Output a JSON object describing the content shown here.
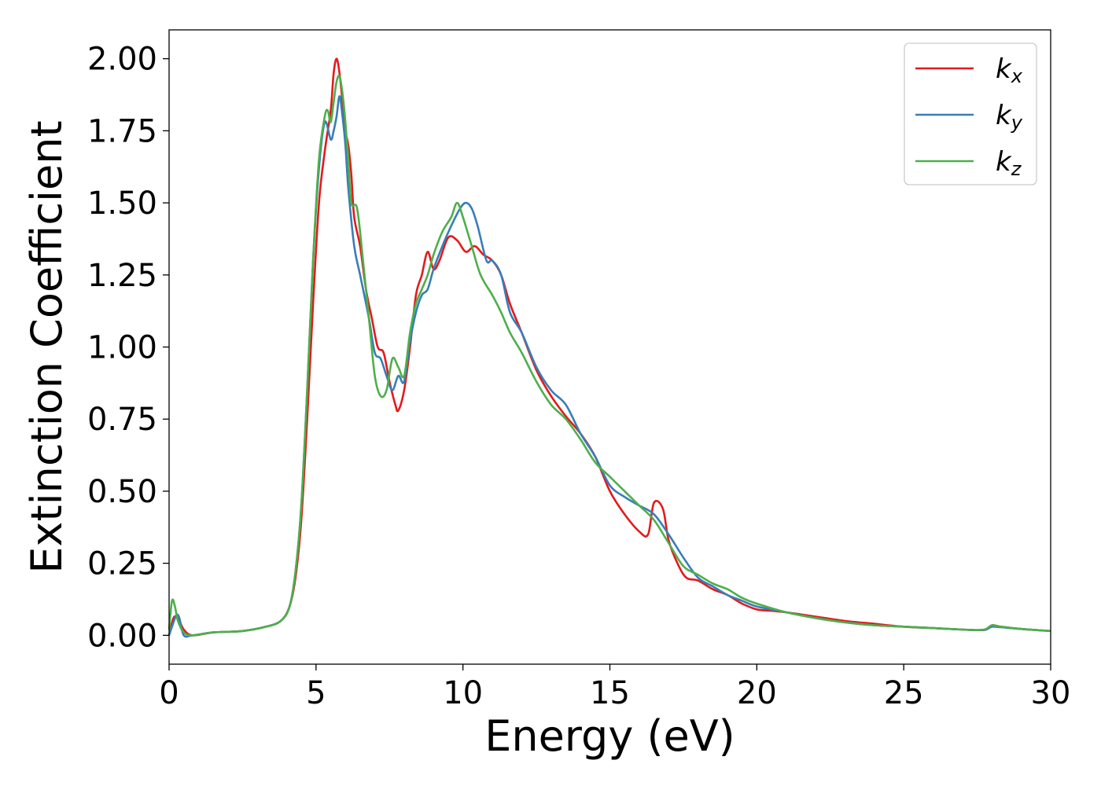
{
  "chart_data": {
    "type": "line",
    "xlabel": "Energy (eV)",
    "ylabel": "Extinction Coefficient",
    "xlim": [
      0,
      30
    ],
    "ylim": [
      -0.1,
      2.1
    ],
    "xticks": [
      "0",
      "5",
      "10",
      "15",
      "20",
      "25",
      "30"
    ],
    "yticks": [
      "0.00",
      "0.25",
      "0.50",
      "0.75",
      "1.00",
      "1.25",
      "1.50",
      "1.75",
      "2.00"
    ],
    "grid": false,
    "legend_position": "top-right",
    "series": [
      {
        "name": "k",
        "subscript": "x",
        "color": "#e41a1c",
        "x": [
          0,
          0.15,
          0.3,
          0.5,
          0.8,
          1.5,
          2.5,
          3.3,
          3.8,
          4.1,
          4.3,
          4.5,
          4.7,
          4.9,
          5.1,
          5.3,
          5.5,
          5.6,
          5.7,
          5.8,
          5.9,
          6.0,
          6.1,
          6.2,
          6.3,
          6.5,
          6.7,
          6.9,
          7.1,
          7.3,
          7.5,
          7.7,
          7.8,
          8.0,
          8.2,
          8.4,
          8.6,
          8.8,
          9.0,
          9.2,
          9.5,
          9.8,
          10.1,
          10.4,
          10.7,
          11.0,
          11.3,
          11.6,
          12.0,
          12.5,
          13.0,
          13.5,
          14.0,
          14.5,
          15.0,
          15.5,
          16.0,
          16.3,
          16.5,
          16.8,
          17.0,
          17.3,
          17.6,
          18.0,
          18.5,
          19.0,
          19.5,
          20.0,
          20.5,
          21.0,
          22.0,
          23.0,
          24.0,
          25.0,
          26.0,
          27.0,
          27.5,
          27.8,
          28.0,
          28.3,
          29.0,
          30.0
        ],
        "y": [
          0.0,
          0.06,
          0.06,
          0.02,
          0.0,
          0.01,
          0.015,
          0.03,
          0.05,
          0.1,
          0.2,
          0.4,
          0.75,
          1.15,
          1.5,
          1.68,
          1.82,
          1.95,
          2.0,
          1.95,
          1.85,
          1.75,
          1.7,
          1.6,
          1.45,
          1.35,
          1.2,
          1.1,
          1.0,
          0.98,
          0.88,
          0.8,
          0.78,
          0.85,
          1.0,
          1.18,
          1.25,
          1.33,
          1.27,
          1.3,
          1.38,
          1.37,
          1.33,
          1.35,
          1.32,
          1.3,
          1.25,
          1.15,
          1.05,
          0.92,
          0.83,
          0.76,
          0.7,
          0.62,
          0.5,
          0.42,
          0.36,
          0.35,
          0.46,
          0.44,
          0.33,
          0.25,
          0.2,
          0.19,
          0.16,
          0.14,
          0.11,
          0.09,
          0.085,
          0.08,
          0.065,
          0.05,
          0.04,
          0.03,
          0.025,
          0.02,
          0.018,
          0.02,
          0.035,
          0.03,
          0.022,
          0.015
        ]
      },
      {
        "name": "k",
        "subscript": "y",
        "color": "#377eb8",
        "x": [
          0,
          0.1,
          0.25,
          0.35,
          0.5,
          0.8,
          1.5,
          2.5,
          3.3,
          3.8,
          4.1,
          4.3,
          4.5,
          4.7,
          4.9,
          5.1,
          5.3,
          5.5,
          5.6,
          5.7,
          5.8,
          5.9,
          6.0,
          6.1,
          6.3,
          6.5,
          6.8,
          7.0,
          7.2,
          7.4,
          7.6,
          7.8,
          8.0,
          8.2,
          8.4,
          8.6,
          8.8,
          9.0,
          9.3,
          9.6,
          9.9,
          10.1,
          10.3,
          10.5,
          10.8,
          11.0,
          11.3,
          11.6,
          12.0,
          12.5,
          13.0,
          13.5,
          14.0,
          14.5,
          15.0,
          15.5,
          16.0,
          16.5,
          17.0,
          17.5,
          18.0,
          18.5,
          19.0,
          19.5,
          20.0,
          21.0,
          22.0,
          23.0,
          24.0,
          25.0,
          26.0,
          27.0,
          27.5,
          27.8,
          28.0,
          28.3,
          29.0,
          30.0
        ],
        "y": [
          0.0,
          0.03,
          0.07,
          0.06,
          0.0,
          0.0,
          0.01,
          0.015,
          0.03,
          0.05,
          0.1,
          0.22,
          0.45,
          0.85,
          1.3,
          1.62,
          1.78,
          1.72,
          1.75,
          1.8,
          1.87,
          1.8,
          1.7,
          1.55,
          1.35,
          1.25,
          1.1,
          0.98,
          0.96,
          0.9,
          0.85,
          0.9,
          0.88,
          1.02,
          1.12,
          1.18,
          1.2,
          1.27,
          1.35,
          1.42,
          1.48,
          1.5,
          1.48,
          1.42,
          1.3,
          1.3,
          1.25,
          1.12,
          1.05,
          0.93,
          0.85,
          0.8,
          0.7,
          0.62,
          0.52,
          0.48,
          0.45,
          0.42,
          0.35,
          0.27,
          0.2,
          0.17,
          0.14,
          0.12,
          0.1,
          0.08,
          0.06,
          0.045,
          0.035,
          0.03,
          0.025,
          0.02,
          0.018,
          0.02,
          0.03,
          0.028,
          0.022,
          0.015
        ]
      },
      {
        "name": "k",
        "subscript": "z",
        "color": "#4daf4a",
        "x": [
          0,
          0.1,
          0.2,
          0.3,
          0.5,
          0.8,
          1.5,
          2.5,
          3.3,
          3.8,
          4.1,
          4.3,
          4.5,
          4.7,
          4.9,
          5.1,
          5.3,
          5.4,
          5.5,
          5.6,
          5.7,
          5.8,
          5.9,
          6.0,
          6.1,
          6.2,
          6.4,
          6.6,
          6.8,
          7.0,
          7.2,
          7.4,
          7.6,
          7.8,
          8.0,
          8.2,
          8.4,
          8.6,
          8.8,
          9.0,
          9.3,
          9.6,
          9.8,
          10.0,
          10.3,
          10.6,
          11.0,
          11.3,
          11.6,
          12.0,
          12.5,
          13.0,
          13.5,
          14.0,
          14.5,
          15.0,
          15.5,
          16.0,
          16.5,
          17.0,
          17.5,
          18.0,
          18.5,
          19.0,
          19.5,
          20.0,
          21.0,
          22.0,
          23.0,
          24.0,
          25.0,
          26.0,
          27.0,
          27.5,
          27.8,
          28.0,
          28.3,
          29.0,
          30.0
        ],
        "y": [
          0.02,
          0.12,
          0.1,
          0.05,
          0.01,
          0.0,
          0.01,
          0.015,
          0.03,
          0.05,
          0.1,
          0.22,
          0.45,
          0.85,
          1.3,
          1.65,
          1.8,
          1.82,
          1.78,
          1.85,
          1.92,
          1.94,
          1.88,
          1.78,
          1.65,
          1.5,
          1.48,
          1.3,
          1.1,
          0.9,
          0.83,
          0.85,
          0.96,
          0.93,
          0.9,
          1.05,
          1.15,
          1.2,
          1.25,
          1.32,
          1.4,
          1.45,
          1.5,
          1.45,
          1.35,
          1.25,
          1.18,
          1.12,
          1.05,
          0.98,
          0.88,
          0.8,
          0.75,
          0.68,
          0.6,
          0.55,
          0.5,
          0.45,
          0.4,
          0.32,
          0.24,
          0.21,
          0.18,
          0.16,
          0.13,
          0.11,
          0.08,
          0.06,
          0.045,
          0.035,
          0.03,
          0.025,
          0.02,
          0.018,
          0.022,
          0.035,
          0.03,
          0.022,
          0.015
        ]
      }
    ]
  }
}
